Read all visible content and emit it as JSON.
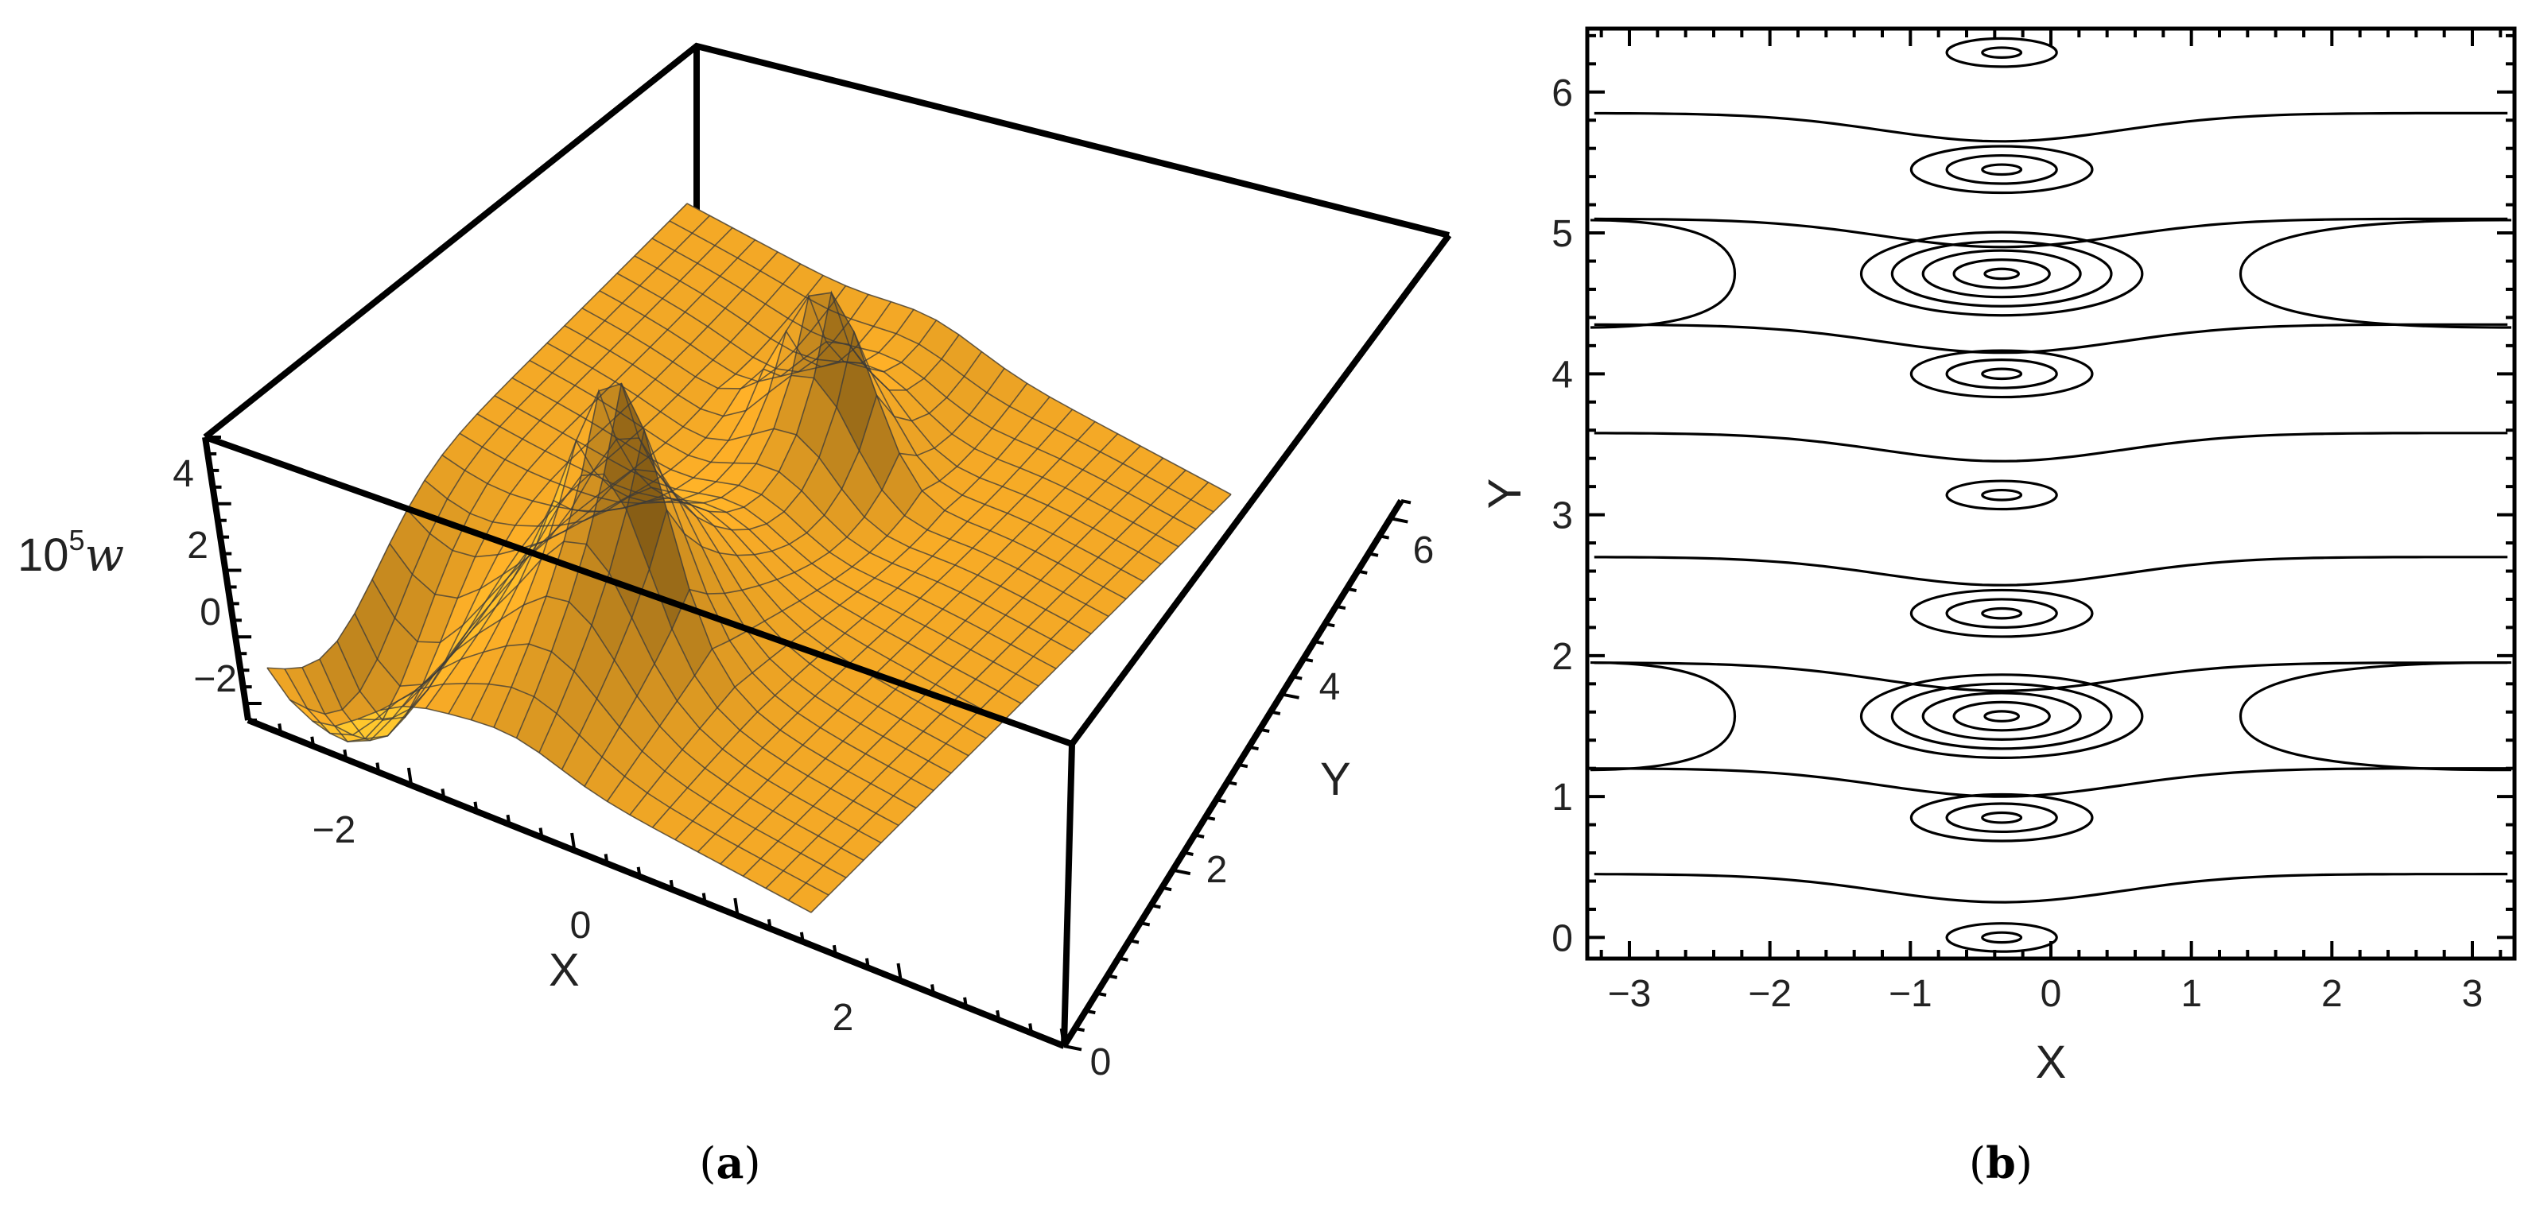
{
  "chart_data": [
    {
      "panel": "a",
      "type": "surface",
      "caption_label": "a",
      "xlabel": "X",
      "ylabel": "Y",
      "zlabel": "10",
      "zlabel_sup": "5",
      "zlabel_var": "w",
      "x_ticks": [
        "−2",
        "0",
        "2"
      ],
      "y_ticks": [
        "0",
        "2",
        "4",
        "6"
      ],
      "z_ticks": [
        "4",
        "2",
        "0",
        "−2"
      ],
      "xlim": [
        -3.14,
        3.14
      ],
      "ylim": [
        0,
        6.28
      ],
      "zlim": [
        -3.5,
        5
      ],
      "surface_color": "#F4A92A",
      "peaks": [
        {
          "x": -0.3,
          "y": 1.57,
          "z": 4.2
        },
        {
          "x": -0.3,
          "y": 4.71,
          "z": 4.2
        }
      ],
      "trough": {
        "x": -2.6,
        "y": 0.9,
        "z": -3.0
      }
    },
    {
      "panel": "b",
      "type": "contour",
      "caption_label": "b",
      "xlabel": "X",
      "ylabel": "Y",
      "x_ticks": [
        "−3",
        "−2",
        "−1",
        "0",
        "1",
        "2",
        "3"
      ],
      "y_ticks": [
        "0",
        "1",
        "2",
        "3",
        "4",
        "5",
        "6"
      ],
      "xlim": [
        -3.3,
        3.3
      ],
      "ylim": [
        -0.15,
        6.45
      ],
      "centers": [
        {
          "x": -0.35,
          "y": 0.0,
          "rings": 2
        },
        {
          "x": -0.35,
          "y": 0.85,
          "rings": 3
        },
        {
          "x": -0.35,
          "y": 1.57,
          "rings": 5
        },
        {
          "x": -0.35,
          "y": 2.3,
          "rings": 3
        },
        {
          "x": -0.35,
          "y": 3.14,
          "rings": 2
        },
        {
          "x": -0.35,
          "y": 4.0,
          "rings": 3
        },
        {
          "x": -0.35,
          "y": 4.71,
          "rings": 5
        },
        {
          "x": -0.35,
          "y": 5.45,
          "rings": 3
        },
        {
          "x": -0.35,
          "y": 6.28,
          "rings": 2
        }
      ]
    }
  ]
}
